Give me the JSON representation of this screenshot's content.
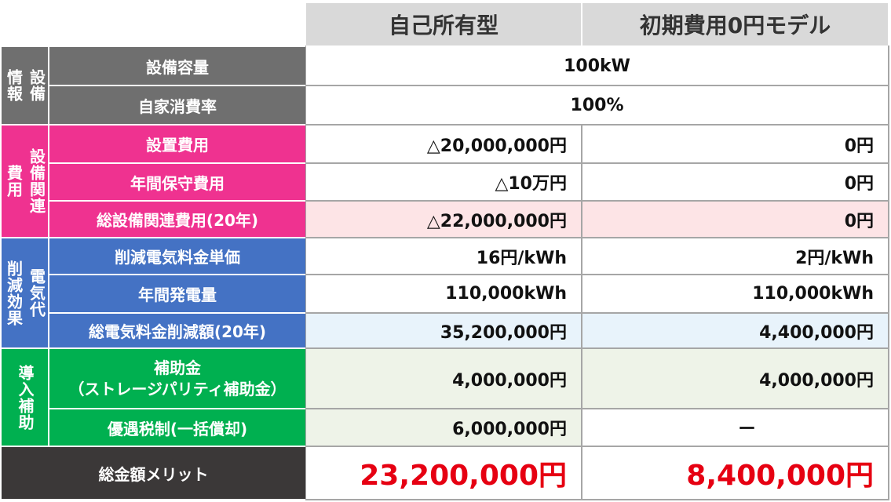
{
  "header": {
    "col1": "自己所有型",
    "col2": "初期費用0円モデル"
  },
  "sections": {
    "equipment_info": {
      "left": "情報",
      "right": "設備"
    },
    "equipment_cost": {
      "left": "費用",
      "right": "設備関連"
    },
    "reduction": {
      "left": "削減効果",
      "right": "電気代"
    },
    "subsidy": {
      "left": "導入補助"
    }
  },
  "rows": {
    "capacity": {
      "label": "設備容量",
      "value": "100kW"
    },
    "self_consumption": {
      "label": "自家消費率",
      "value": "100%"
    },
    "install_cost": {
      "label": "設置費用",
      "col1": "△20,000,000円",
      "col2": "0円"
    },
    "maintenance": {
      "label": "年間保守費用",
      "col1": "△10万円",
      "col2": "0円"
    },
    "total_cost": {
      "label": "総設備関連費用(20年)",
      "col1": "△22,000,000円",
      "col2": "0円"
    },
    "unit_price": {
      "label": "削減電気料金単価",
      "col1": "16円/kWh",
      "col2": "2円/kWh"
    },
    "generation": {
      "label": "年間発電量",
      "col1": "110,000kWh",
      "col2": "110,000kWh"
    },
    "total_reduction": {
      "label": "総電気料金削減額(20年)",
      "col1": "35,200,000円",
      "col2": "4,400,000円"
    },
    "subsidy": {
      "label_line1": "補助金",
      "label_line2": "（ストレージパリティ補助金）",
      "col1": "4,000,000円",
      "col2": "4,000,000円"
    },
    "tax": {
      "label": "優遇税制(一括償却)",
      "col1": "6,000,000円",
      "col2": "ー"
    },
    "merit": {
      "label": "総金額メリット",
      "col1": "23,200,000円",
      "col2": "8,400,000円"
    }
  },
  "colors": {
    "gray": "#6f6f6f",
    "pink": "#ef3290",
    "blue": "#4472c4",
    "green": "#00b050",
    "dark": "#3b3838",
    "accent_red": "#e60012"
  }
}
